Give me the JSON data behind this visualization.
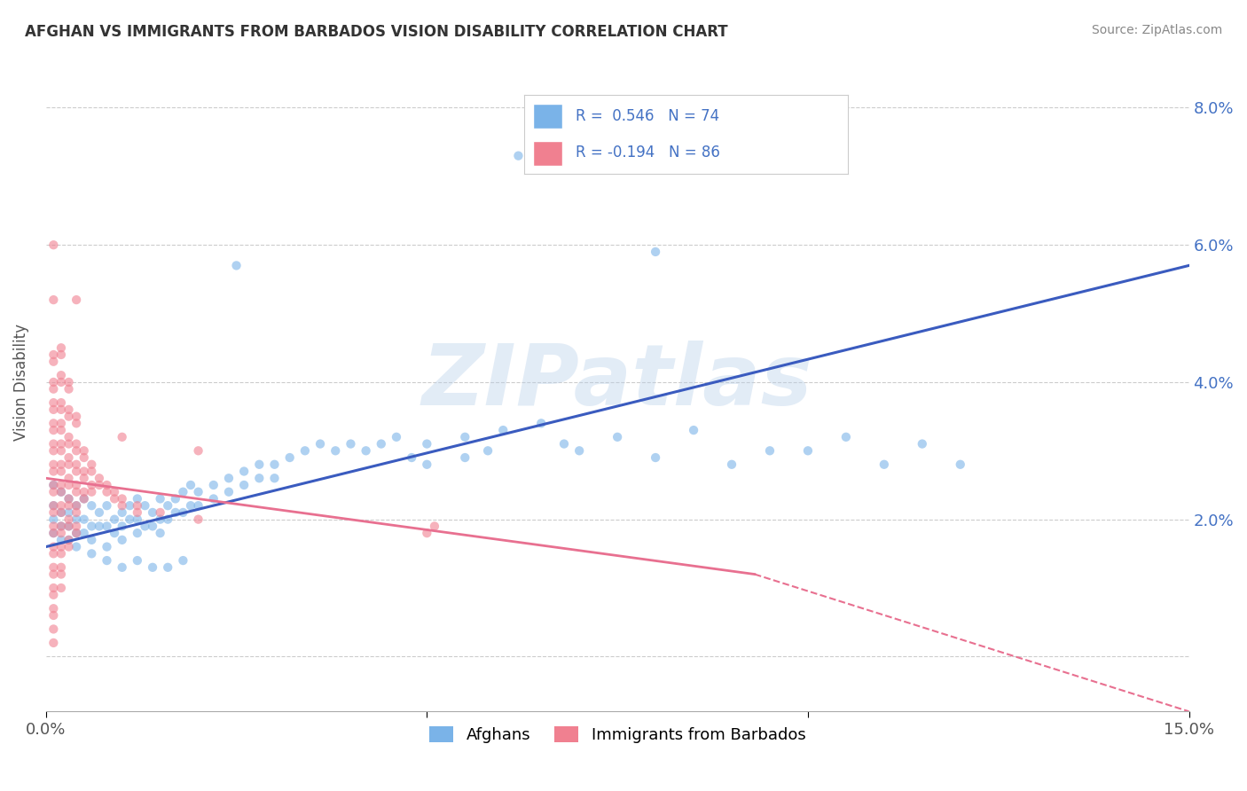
{
  "title": "AFGHAN VS IMMIGRANTS FROM BARBADOS VISION DISABILITY CORRELATION CHART",
  "source": "Source: ZipAtlas.com",
  "ylabel": "Vision Disability",
  "xlim": [
    0.0,
    0.15
  ],
  "ylim": [
    -0.008,
    0.088
  ],
  "ytick_vals": [
    0.0,
    0.02,
    0.04,
    0.06,
    0.08
  ],
  "ytick_labels": [
    "",
    "2.0%",
    "4.0%",
    "6.0%",
    "8.0%"
  ],
  "xtick_vals": [
    0.0,
    0.05,
    0.1,
    0.15
  ],
  "xtick_labels": [
    "0.0%",
    "",
    "",
    "15.0%"
  ],
  "afghan_color": "#7ab3e8",
  "barbados_color": "#f08090",
  "blue_line_color": "#3a5bbf",
  "pink_line_color": "#e87090",
  "watermark": "ZIPatlas",
  "legend_label_blue": "Afghans",
  "legend_label_pink": "Immigrants from Barbados",
  "blue_line": [
    0.0,
    0.016,
    0.15,
    0.057
  ],
  "pink_line_solid": [
    0.0,
    0.026,
    0.093,
    0.012
  ],
  "pink_line_dash": [
    0.093,
    0.012,
    0.15,
    -0.008
  ],
  "afghan_points": [
    [
      0.001,
      0.025
    ],
    [
      0.001,
      0.022
    ],
    [
      0.001,
      0.02
    ],
    [
      0.001,
      0.018
    ],
    [
      0.002,
      0.024
    ],
    [
      0.002,
      0.021
    ],
    [
      0.002,
      0.019
    ],
    [
      0.002,
      0.017
    ],
    [
      0.003,
      0.023
    ],
    [
      0.003,
      0.021
    ],
    [
      0.003,
      0.019
    ],
    [
      0.003,
      0.017
    ],
    [
      0.004,
      0.022
    ],
    [
      0.004,
      0.02
    ],
    [
      0.004,
      0.018
    ],
    [
      0.004,
      0.016
    ],
    [
      0.005,
      0.023
    ],
    [
      0.005,
      0.02
    ],
    [
      0.005,
      0.018
    ],
    [
      0.006,
      0.022
    ],
    [
      0.006,
      0.019
    ],
    [
      0.006,
      0.017
    ],
    [
      0.007,
      0.021
    ],
    [
      0.007,
      0.019
    ],
    [
      0.008,
      0.022
    ],
    [
      0.008,
      0.019
    ],
    [
      0.008,
      0.016
    ],
    [
      0.009,
      0.02
    ],
    [
      0.009,
      0.018
    ],
    [
      0.01,
      0.021
    ],
    [
      0.01,
      0.019
    ],
    [
      0.01,
      0.017
    ],
    [
      0.011,
      0.022
    ],
    [
      0.011,
      0.02
    ],
    [
      0.012,
      0.023
    ],
    [
      0.012,
      0.02
    ],
    [
      0.012,
      0.018
    ],
    [
      0.013,
      0.022
    ],
    [
      0.013,
      0.019
    ],
    [
      0.014,
      0.021
    ],
    [
      0.014,
      0.019
    ],
    [
      0.015,
      0.023
    ],
    [
      0.015,
      0.02
    ],
    [
      0.015,
      0.018
    ],
    [
      0.016,
      0.022
    ],
    [
      0.016,
      0.02
    ],
    [
      0.017,
      0.023
    ],
    [
      0.017,
      0.021
    ],
    [
      0.018,
      0.024
    ],
    [
      0.018,
      0.021
    ],
    [
      0.019,
      0.025
    ],
    [
      0.019,
      0.022
    ],
    [
      0.02,
      0.024
    ],
    [
      0.02,
      0.022
    ],
    [
      0.022,
      0.025
    ],
    [
      0.022,
      0.023
    ],
    [
      0.024,
      0.026
    ],
    [
      0.024,
      0.024
    ],
    [
      0.026,
      0.027
    ],
    [
      0.026,
      0.025
    ],
    [
      0.028,
      0.028
    ],
    [
      0.028,
      0.026
    ],
    [
      0.03,
      0.028
    ],
    [
      0.03,
      0.026
    ],
    [
      0.032,
      0.029
    ],
    [
      0.034,
      0.03
    ],
    [
      0.036,
      0.031
    ],
    [
      0.038,
      0.03
    ],
    [
      0.04,
      0.031
    ],
    [
      0.042,
      0.03
    ],
    [
      0.044,
      0.031
    ],
    [
      0.046,
      0.032
    ],
    [
      0.048,
      0.029
    ],
    [
      0.05,
      0.031
    ],
    [
      0.05,
      0.028
    ],
    [
      0.055,
      0.032
    ],
    [
      0.055,
      0.029
    ],
    [
      0.058,
      0.03
    ],
    [
      0.06,
      0.033
    ],
    [
      0.065,
      0.034
    ],
    [
      0.068,
      0.031
    ],
    [
      0.07,
      0.03
    ],
    [
      0.075,
      0.032
    ],
    [
      0.08,
      0.029
    ],
    [
      0.085,
      0.033
    ],
    [
      0.09,
      0.028
    ],
    [
      0.095,
      0.03
    ],
    [
      0.1,
      0.03
    ],
    [
      0.105,
      0.032
    ],
    [
      0.11,
      0.028
    ],
    [
      0.115,
      0.031
    ],
    [
      0.12,
      0.028
    ],
    [
      0.006,
      0.015
    ],
    [
      0.008,
      0.014
    ],
    [
      0.01,
      0.013
    ],
    [
      0.012,
      0.014
    ],
    [
      0.014,
      0.013
    ],
    [
      0.016,
      0.013
    ],
    [
      0.018,
      0.014
    ],
    [
      0.025,
      0.057
    ],
    [
      0.08,
      0.059
    ],
    [
      0.062,
      0.073
    ]
  ],
  "barbados_points": [
    [
      0.001,
      0.052
    ],
    [
      0.001,
      0.044
    ],
    [
      0.001,
      0.043
    ],
    [
      0.001,
      0.04
    ],
    [
      0.001,
      0.039
    ],
    [
      0.001,
      0.037
    ],
    [
      0.001,
      0.036
    ],
    [
      0.001,
      0.034
    ],
    [
      0.001,
      0.033
    ],
    [
      0.001,
      0.031
    ],
    [
      0.001,
      0.03
    ],
    [
      0.001,
      0.028
    ],
    [
      0.001,
      0.027
    ],
    [
      0.001,
      0.025
    ],
    [
      0.001,
      0.024
    ],
    [
      0.001,
      0.022
    ],
    [
      0.001,
      0.021
    ],
    [
      0.001,
      0.019
    ],
    [
      0.001,
      0.018
    ],
    [
      0.001,
      0.016
    ],
    [
      0.001,
      0.015
    ],
    [
      0.001,
      0.013
    ],
    [
      0.001,
      0.012
    ],
    [
      0.001,
      0.01
    ],
    [
      0.001,
      0.009
    ],
    [
      0.001,
      0.007
    ],
    [
      0.001,
      0.006
    ],
    [
      0.001,
      0.004
    ],
    [
      0.001,
      0.002
    ],
    [
      0.002,
      0.045
    ],
    [
      0.002,
      0.044
    ],
    [
      0.002,
      0.041
    ],
    [
      0.002,
      0.04
    ],
    [
      0.002,
      0.037
    ],
    [
      0.002,
      0.036
    ],
    [
      0.002,
      0.034
    ],
    [
      0.002,
      0.033
    ],
    [
      0.002,
      0.031
    ],
    [
      0.002,
      0.03
    ],
    [
      0.002,
      0.028
    ],
    [
      0.002,
      0.027
    ],
    [
      0.002,
      0.025
    ],
    [
      0.002,
      0.024
    ],
    [
      0.002,
      0.022
    ],
    [
      0.002,
      0.021
    ],
    [
      0.002,
      0.019
    ],
    [
      0.002,
      0.018
    ],
    [
      0.002,
      0.016
    ],
    [
      0.002,
      0.015
    ],
    [
      0.002,
      0.013
    ],
    [
      0.002,
      0.012
    ],
    [
      0.002,
      0.01
    ],
    [
      0.003,
      0.04
    ],
    [
      0.003,
      0.039
    ],
    [
      0.003,
      0.036
    ],
    [
      0.003,
      0.035
    ],
    [
      0.003,
      0.032
    ],
    [
      0.003,
      0.031
    ],
    [
      0.003,
      0.029
    ],
    [
      0.003,
      0.028
    ],
    [
      0.003,
      0.026
    ],
    [
      0.003,
      0.025
    ],
    [
      0.003,
      0.023
    ],
    [
      0.003,
      0.022
    ],
    [
      0.003,
      0.02
    ],
    [
      0.003,
      0.019
    ],
    [
      0.003,
      0.017
    ],
    [
      0.003,
      0.016
    ],
    [
      0.004,
      0.035
    ],
    [
      0.004,
      0.034
    ],
    [
      0.004,
      0.031
    ],
    [
      0.004,
      0.03
    ],
    [
      0.004,
      0.028
    ],
    [
      0.004,
      0.027
    ],
    [
      0.004,
      0.025
    ],
    [
      0.004,
      0.024
    ],
    [
      0.004,
      0.022
    ],
    [
      0.004,
      0.021
    ],
    [
      0.004,
      0.019
    ],
    [
      0.004,
      0.018
    ],
    [
      0.005,
      0.03
    ],
    [
      0.005,
      0.029
    ],
    [
      0.005,
      0.027
    ],
    [
      0.005,
      0.026
    ],
    [
      0.005,
      0.024
    ],
    [
      0.005,
      0.023
    ],
    [
      0.006,
      0.028
    ],
    [
      0.006,
      0.027
    ],
    [
      0.006,
      0.025
    ],
    [
      0.006,
      0.024
    ],
    [
      0.007,
      0.026
    ],
    [
      0.007,
      0.025
    ],
    [
      0.008,
      0.025
    ],
    [
      0.008,
      0.024
    ],
    [
      0.009,
      0.024
    ],
    [
      0.009,
      0.023
    ],
    [
      0.01,
      0.023
    ],
    [
      0.01,
      0.022
    ],
    [
      0.012,
      0.022
    ],
    [
      0.012,
      0.021
    ],
    [
      0.015,
      0.021
    ],
    [
      0.02,
      0.02
    ],
    [
      0.05,
      0.018
    ],
    [
      0.051,
      0.019
    ],
    [
      0.01,
      0.032
    ],
    [
      0.02,
      0.03
    ],
    [
      0.004,
      0.052
    ],
    [
      0.001,
      0.06
    ]
  ]
}
